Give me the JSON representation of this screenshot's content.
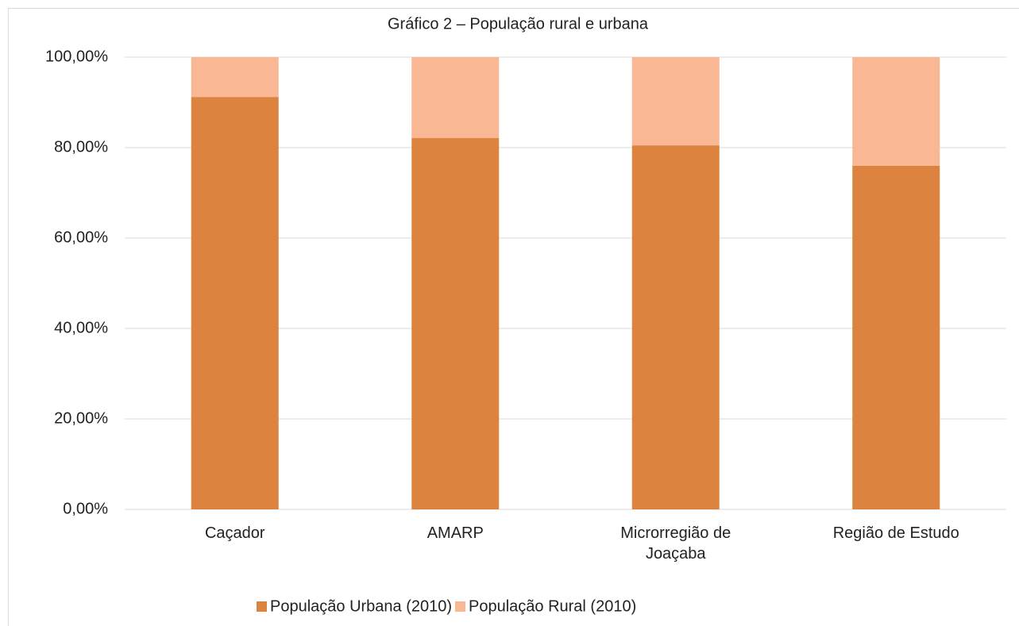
{
  "chart_data": {
    "type": "stacked_bar",
    "title": "Gráfico 2 – População rural e urbana",
    "categories": [
      "Caçador",
      "AMARP",
      "Microrregião de Joaçaba",
      "Região de Estudo"
    ],
    "series": [
      {
        "name": "População Urbana (2010)",
        "color": "#dc843f",
        "values": [
          91.2,
          82.1,
          80.5,
          76.0
        ]
      },
      {
        "name": "População Rural (2010)",
        "color": "#f9b793",
        "values": [
          8.8,
          17.9,
          19.5,
          24.0
        ]
      }
    ],
    "ylim": [
      0,
      100
    ],
    "yticks": [
      {
        "value": 0,
        "label": "0,00%"
      },
      {
        "value": 20,
        "label": "20,00%"
      },
      {
        "value": 40,
        "label": "40,00%"
      },
      {
        "value": 60,
        "label": "60,00%"
      },
      {
        "value": 80,
        "label": "80,00%"
      },
      {
        "value": 100,
        "label": "100,00%"
      }
    ],
    "grid": true,
    "legend": "bottom"
  }
}
